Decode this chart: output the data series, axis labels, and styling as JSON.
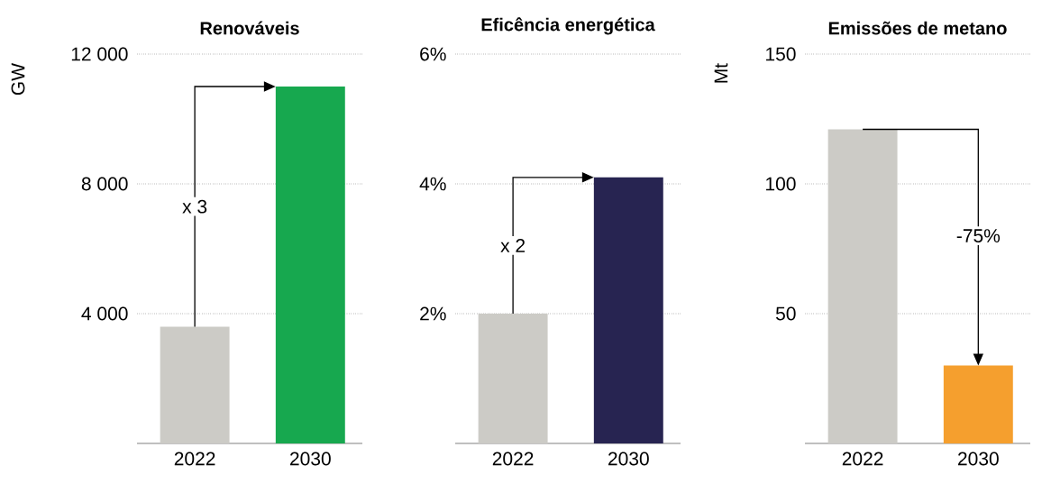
{
  "chart_data": [
    {
      "type": "bar",
      "title": "Renováveis",
      "ylabel": "GW",
      "categories": [
        "2022",
        "2030"
      ],
      "values": [
        3600,
        11000
      ],
      "colors": [
        "#cccbc6",
        "#17a84f"
      ],
      "ylim": [
        0,
        12000
      ],
      "yticks": [
        {
          "value": 4000,
          "label": "4 000"
        },
        {
          "value": 8000,
          "label": "8 000"
        },
        {
          "value": 12000,
          "label": "12 000"
        }
      ],
      "grid": "y",
      "annotations": [
        "x 3"
      ]
    },
    {
      "type": "bar",
      "title": "Eficência energética",
      "categories": [
        "2022",
        "2030"
      ],
      "values": [
        2,
        4.1
      ],
      "colors": [
        "#cccbc6",
        "#272451"
      ],
      "ylim": [
        0,
        6
      ],
      "yticks": [
        {
          "value": 2,
          "label": "2%"
        },
        {
          "value": 4,
          "label": "4%"
        },
        {
          "value": 6,
          "label": "6%"
        }
      ],
      "grid": "y",
      "annotations": [
        "x 2"
      ]
    },
    {
      "type": "bar",
      "title": "Emissões de metano",
      "ylabel": "Mt",
      "categories": [
        "2022",
        "2030"
      ],
      "values": [
        121,
        30
      ],
      "colors": [
        "#cccbc6",
        "#f59f2e"
      ],
      "ylim": [
        0,
        150
      ],
      "yticks": [
        50,
        100,
        150
      ],
      "grid": "y",
      "annotations": [
        "-75%"
      ]
    }
  ]
}
